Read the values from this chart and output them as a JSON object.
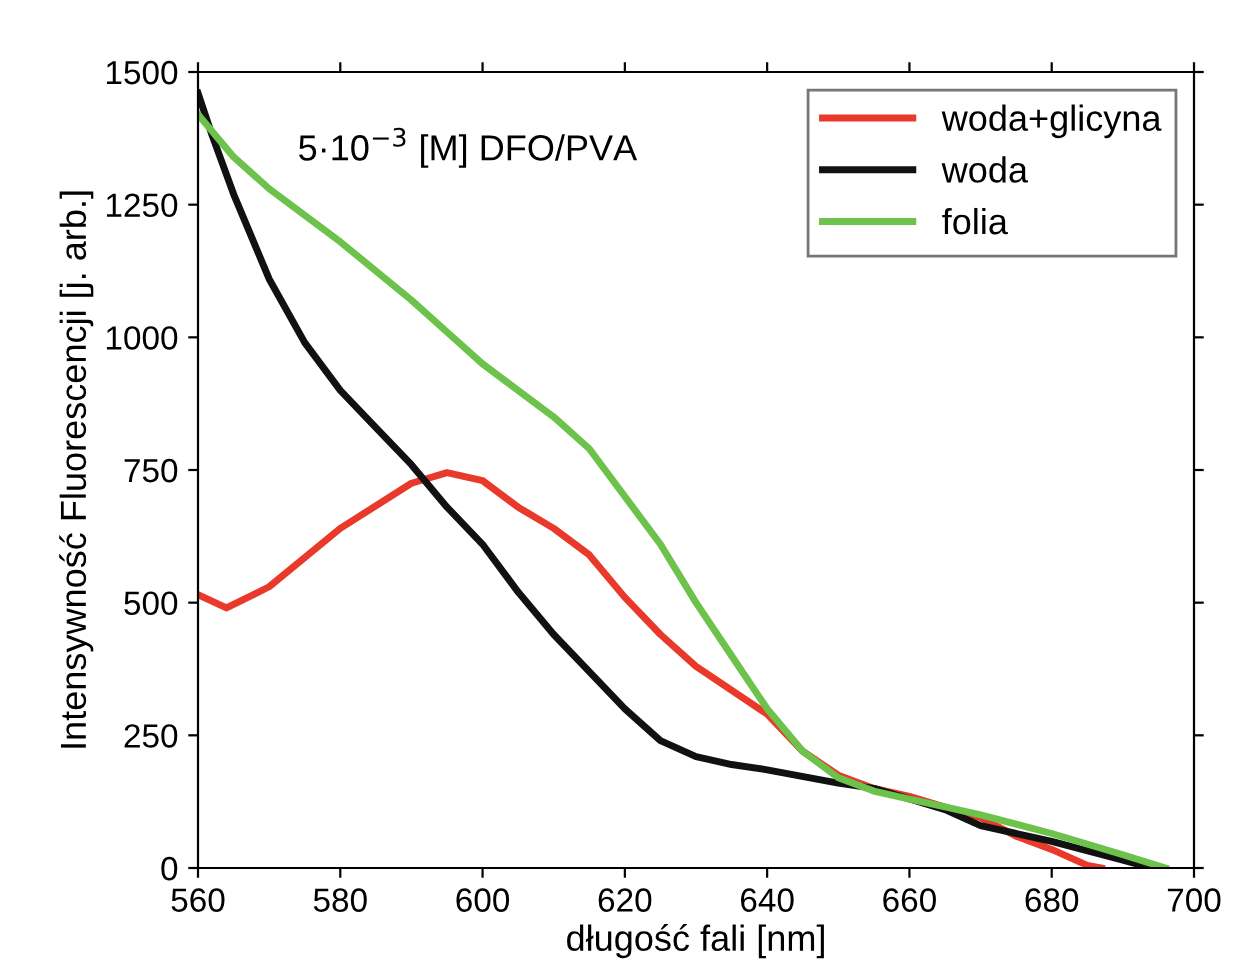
{
  "chart_data": {
    "type": "line",
    "xlabel": "długość fali [nm]",
    "ylabel": "Intensywność Fluorescencji [j. arb.]",
    "annotations": [
      "5·10$^{−3}$ [M] DFO/PVA"
    ],
    "xlim": [
      560,
      700
    ],
    "xticks": [
      560,
      580,
      600,
      620,
      640,
      660,
      680,
      700
    ],
    "ylim": [
      0,
      1500
    ],
    "yticks": [
      0,
      250,
      500,
      750,
      1000,
      1250,
      1500
    ],
    "grid": false,
    "legend": "top right",
    "line_style": "solid",
    "marker": "none",
    "series": [
      {
        "name": "woda+glicyna",
        "color": "#e8392a",
        "x": [
          560,
          564,
          570,
          580,
          590,
          595,
          600,
          605,
          610,
          615,
          620,
          625,
          630,
          640,
          645,
          650,
          655,
          660,
          665,
          670,
          675,
          680,
          685,
          687
        ],
        "values": [
          515,
          490,
          530,
          640,
          725,
          745,
          730,
          680,
          640,
          590,
          510,
          440,
          380,
          290,
          220,
          175,
          150,
          135,
          115,
          95,
          60,
          35,
          5,
          0
        ]
      },
      {
        "name": "woda",
        "color": "#111111",
        "x": [
          560,
          562,
          565,
          570,
          575,
          580,
          585,
          590,
          595,
          600,
          605,
          610,
          615,
          620,
          625,
          630,
          635,
          640,
          650,
          655,
          660,
          665,
          670,
          680,
          690,
          694
        ],
        "values": [
          1460,
          1380,
          1270,
          1110,
          990,
          900,
          830,
          760,
          680,
          610,
          520,
          440,
          370,
          300,
          240,
          210,
          195,
          185,
          160,
          150,
          130,
          110,
          80,
          50,
          15,
          0
        ]
      },
      {
        "name": "folia",
        "color": "#6cc24a",
        "x": [
          560,
          565,
          570,
          580,
          590,
          595,
          600,
          610,
          615,
          620,
          625,
          630,
          635,
          640,
          645,
          650,
          655,
          660,
          665,
          670,
          680,
          690,
          696
        ],
        "values": [
          1420,
          1340,
          1280,
          1180,
          1070,
          1010,
          950,
          850,
          790,
          700,
          610,
          500,
          400,
          300,
          220,
          170,
          145,
          130,
          115,
          100,
          65,
          25,
          0
        ]
      }
    ]
  }
}
